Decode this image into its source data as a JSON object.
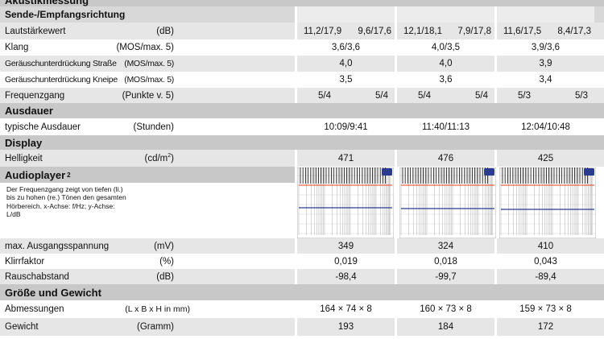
{
  "sections": {
    "akustik": "Akustikmessung",
    "sende": "Sende-/Empfangsrichtung",
    "ausdauer": "Ausdauer",
    "display": "Display",
    "audioplayer": "Audioplayer",
    "audioplayer_sup": "2",
    "groesse": "Größe und Gewicht"
  },
  "rows": {
    "lautstaerke": {
      "label": "Lautstärkewert",
      "unit": "(dB)",
      "v1a": "11,2/17,9",
      "v1b": "9,6/17,6",
      "v2a": "12,1/18,1",
      "v2b": "7,9/17,8",
      "v3a": "11,6/17,5",
      "v3b": "8,4/17,3"
    },
    "klang": {
      "label": "Klang",
      "unit": "(MOS/max. 5)",
      "v1": "3,6/3,6",
      "v2": "4,0/3,5",
      "v3": "3,9/3,6"
    },
    "strasse": {
      "label": "Geräuschunterdrückung Straße",
      "unit": "(MOS/max. 5)",
      "v1": "4,0",
      "v2": "4,0",
      "v3": "3,9"
    },
    "kneipe": {
      "label": "Geräuschunterdrückung Kneipe",
      "unit": "(MOS/max. 5)",
      "v1": "3,5",
      "v2": "3,6",
      "v3": "3,4"
    },
    "frequenz": {
      "label": "Frequenzgang",
      "unit": "(Punkte v. 5)",
      "v1a": "5/4",
      "v1b": "5/4",
      "v2a": "5/4",
      "v2b": "5/4",
      "v3a": "5/3",
      "v3b": "5/3"
    },
    "ausdauer": {
      "label": "typische Ausdauer",
      "unit": "(Stunden)",
      "v1": "10:09/9:41",
      "v2": "11:40/11:13",
      "v3": "12:04/10:48"
    },
    "helligkeit": {
      "label": "Helligkeit",
      "unit": "(cd/m",
      "unit_sup": "2",
      "unit_end": ")",
      "v1": "471",
      "v2": "476",
      "v3": "425"
    },
    "ausgang": {
      "label": "max. Ausgangsspannung",
      "unit": "(mV)",
      "v1": "349",
      "v2": "324",
      "v3": "410"
    },
    "klirr": {
      "label": "Klirrfaktor",
      "unit": "(%)",
      "v1": "0,019",
      "v2": "0,018",
      "v3": "0,043"
    },
    "rausch": {
      "label": "Rauschabstand",
      "unit": "(dB)",
      "v1": "-98,4",
      "v2": "-99,7",
      "v3": "-89,4"
    },
    "abmessungen": {
      "label": "Abmessungen",
      "unit": "(L x B x H in mm)",
      "v1": "164 × 74 × 8",
      "v2": "160 × 73 × 8",
      "v3": "159 × 73 × 8"
    },
    "gewicht": {
      "label": "Gewicht",
      "unit": "(Gramm)",
      "v1": "193",
      "v2": "184",
      "v3": "172"
    }
  },
  "audio_note": "Der Frequenzgang zeigt von tiefen (li.) bis zu hohen (re.) Tönen den gesamten Hörbereich. x-Achse: f/Hz; y-Achse: L/dB",
  "colors": {
    "section": "#c8c8c8",
    "alt_row": "#e6e6e6",
    "line_red": "#e0421b",
    "line_blue": "#2a3c8f"
  }
}
